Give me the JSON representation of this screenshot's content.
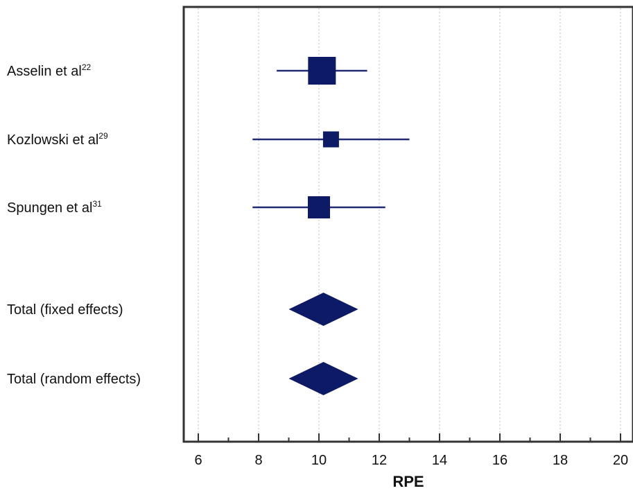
{
  "chart_data": {
    "type": "forest",
    "xlabel": "RPE",
    "xlim": [
      5.5,
      20.4
    ],
    "major_ticks": [
      6,
      8,
      10,
      12,
      14,
      16,
      18,
      20
    ],
    "minor_ticks": [
      7,
      9,
      11,
      13,
      15,
      17,
      19
    ],
    "grid": true,
    "colors": {
      "marker": "#0d1a66",
      "line": "#1f2a72",
      "grid": "#bdbdbd",
      "frame": "#333333"
    },
    "studies": [
      {
        "name": "Asselin et al",
        "ref": "22",
        "estimate": 10.1,
        "ci_low": 8.6,
        "ci_high": 11.6,
        "weight": 0.5
      },
      {
        "name": "Kozlowski et al",
        "ref": "29",
        "estimate": 10.4,
        "ci_low": 7.8,
        "ci_high": 13.0,
        "weight": 0.17
      },
      {
        "name": "Spungen et al",
        "ref": "31",
        "estimate": 10.0,
        "ci_low": 7.8,
        "ci_high": 12.2,
        "weight": 0.33
      }
    ],
    "totals": [
      {
        "name": "Total (fixed effects)",
        "estimate": 10.15,
        "ci_low": 9.0,
        "ci_high": 11.3
      },
      {
        "name": "Total (random effects)",
        "estimate": 10.15,
        "ci_low": 9.0,
        "ci_high": 11.3
      }
    ]
  }
}
